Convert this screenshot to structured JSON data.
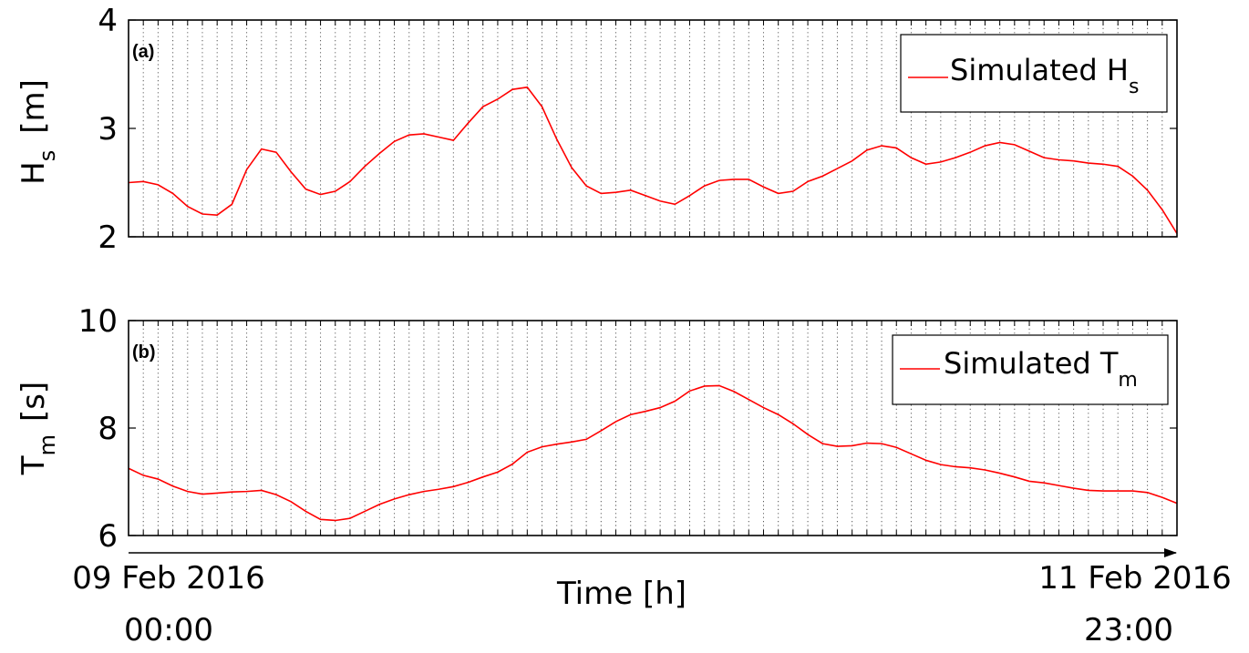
{
  "chart_data": [
    {
      "type": "line",
      "panel_label": "(a)",
      "ylabel": "H",
      "ylabel_sub": "s",
      "ylabel_unit": "[m]",
      "ylim": [
        2,
        4
      ],
      "yticks": [
        "2",
        "3",
        "4"
      ],
      "xlim": [
        0,
        71
      ],
      "grid": "vertical-dotted-hourly",
      "legend": {
        "placement": "top-right",
        "label": "Simulated H",
        "label_sub": "s"
      },
      "series": [
        {
          "color": "#ff0000",
          "values": [
            2.5,
            2.51,
            2.48,
            2.4,
            2.28,
            2.21,
            2.2,
            2.3,
            2.62,
            2.81,
            2.78,
            2.6,
            2.44,
            2.39,
            2.42,
            2.51,
            2.65,
            2.77,
            2.88,
            2.94,
            2.95,
            2.92,
            2.89,
            3.05,
            3.2,
            3.27,
            3.36,
            3.38,
            3.2,
            2.9,
            2.64,
            2.47,
            2.4,
            2.41,
            2.43,
            2.38,
            2.33,
            2.3,
            2.38,
            2.47,
            2.52,
            2.53,
            2.53,
            2.46,
            2.4,
            2.42,
            2.51,
            2.56,
            2.63,
            2.7,
            2.8,
            2.84,
            2.82,
            2.73,
            2.67,
            2.69,
            2.73,
            2.78,
            2.84,
            2.87,
            2.85,
            2.79,
            2.73,
            2.71,
            2.7,
            2.68,
            2.67,
            2.65,
            2.56,
            2.43,
            2.25,
            2.03
          ]
        }
      ]
    },
    {
      "type": "line",
      "panel_label": "(b)",
      "ylabel": "T",
      "ylabel_sub": "m",
      "ylabel_unit": "[s]",
      "ylim": [
        6,
        10
      ],
      "yticks": [
        "6",
        "8",
        "10"
      ],
      "xlim": [
        0,
        71
      ],
      "grid": "vertical-dotted-hourly",
      "legend": {
        "placement": "top-right",
        "label": "Simulated T",
        "label_sub": "m"
      },
      "series": [
        {
          "color": "#ff0000",
          "values": [
            7.25,
            7.12,
            7.05,
            6.92,
            6.82,
            6.77,
            6.79,
            6.81,
            6.82,
            6.84,
            6.76,
            6.63,
            6.45,
            6.3,
            6.28,
            6.32,
            6.45,
            6.58,
            6.68,
            6.76,
            6.82,
            6.86,
            6.91,
            6.99,
            7.09,
            7.18,
            7.33,
            7.55,
            7.65,
            7.7,
            7.74,
            7.79,
            7.95,
            8.12,
            8.25,
            8.31,
            8.38,
            8.5,
            8.69,
            8.78,
            8.79,
            8.68,
            8.53,
            8.38,
            8.25,
            8.08,
            7.88,
            7.71,
            7.66,
            7.67,
            7.72,
            7.71,
            7.64,
            7.52,
            7.4,
            7.32,
            7.28,
            7.26,
            7.22,
            7.16,
            7.09,
            7.01,
            6.98,
            6.93,
            6.88,
            6.84,
            6.83,
            6.83,
            6.83,
            6.8,
            6.71,
            6.6
          ]
        }
      ]
    }
  ],
  "x_axis": {
    "label": "Time [h]",
    "start_date": "09 Feb 2016",
    "start_time": "00:00",
    "end_date": "11 Feb 2016",
    "end_time": "23:00"
  }
}
